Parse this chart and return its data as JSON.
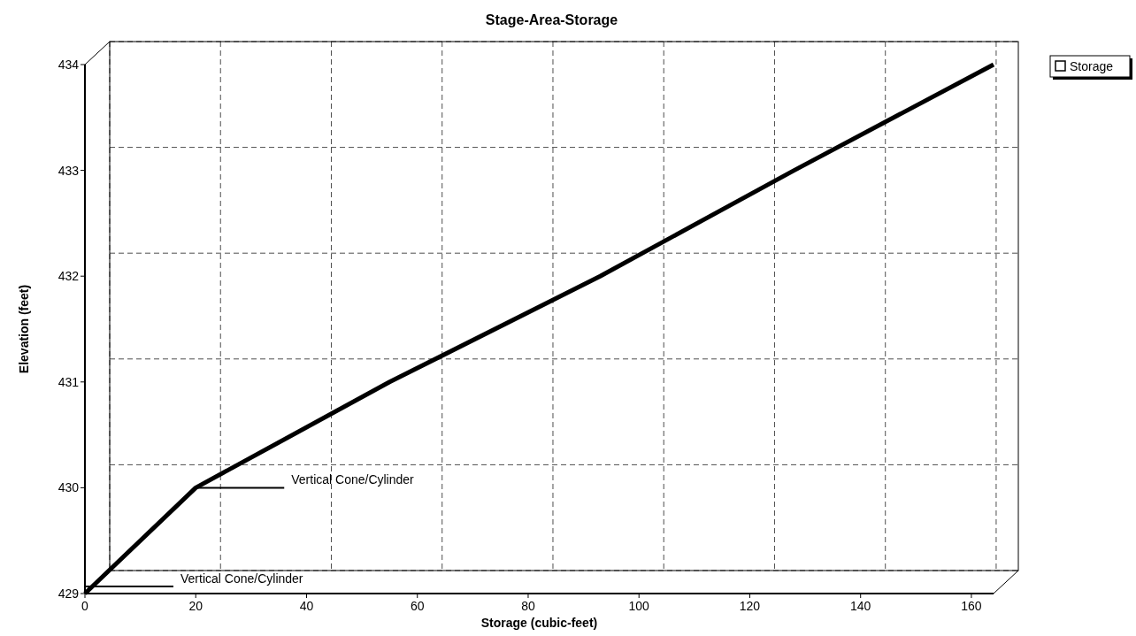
{
  "chart_data": {
    "type": "line",
    "title": "Stage-Area-Storage",
    "xlabel": "Storage (cubic-feet)",
    "ylabel": "Elevation  (feet)",
    "series": [
      {
        "name": "Storage",
        "color": "#000000",
        "x": [
          0,
          20,
          55,
          93,
          128,
          164
        ],
        "values": [
          429,
          430,
          431,
          432,
          433,
          434
        ]
      }
    ],
    "xlim": [
      0,
      164
    ],
    "xticks": [
      0,
      20,
      40,
      60,
      80,
      100,
      120,
      140,
      160
    ],
    "ylim": [
      429,
      434
    ],
    "yticks": [
      429,
      430,
      431,
      432,
      433,
      434
    ],
    "grid": true,
    "legend": "top right",
    "line_style": "solid",
    "marker": "none",
    "annotations": [
      {
        "text": "Vertical Cone/Cylinder",
        "x": 20,
        "y": 430
      },
      {
        "text": "Vertical Cone/Cylinder",
        "x": 0,
        "y": 429
      }
    ]
  }
}
